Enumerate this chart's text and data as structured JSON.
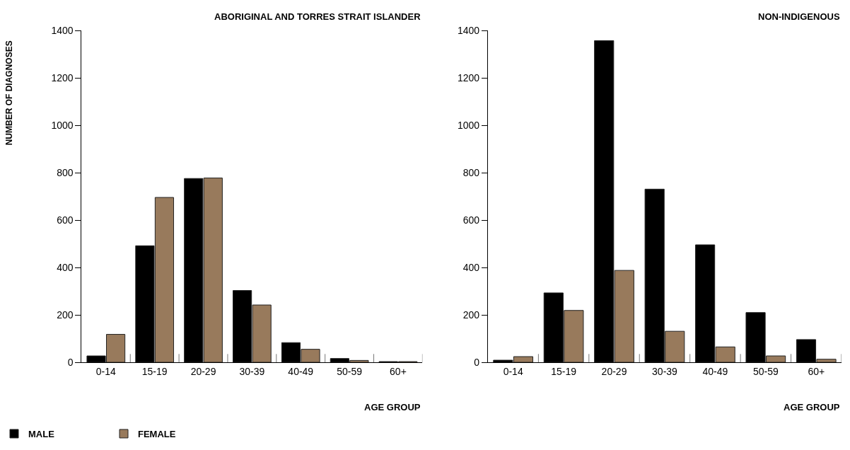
{
  "chart_data": [
    {
      "type": "bar",
      "title": "ABORIGINAL AND TORRES STRAIT ISLANDER",
      "xlabel": "AGE GROUP",
      "ylabel": "NUMBER OF DIAGNOSES",
      "categories": [
        "0-14",
        "15-19",
        "20-29",
        "30-39",
        "40-49",
        "50-59",
        "60+"
      ],
      "series": [
        {
          "name": "MALE",
          "color": "#000000",
          "values": [
            27,
            492,
            776,
            303,
            83,
            16,
            3
          ]
        },
        {
          "name": "FEMALE",
          "color": "#987a5c",
          "values": [
            118,
            696,
            778,
            242,
            55,
            8,
            3
          ]
        }
      ],
      "ylim": [
        0,
        1400
      ],
      "yticks": [
        0,
        200,
        400,
        600,
        800,
        1000,
        1200,
        1400
      ],
      "legend": "bottom left"
    },
    {
      "type": "bar",
      "title": "NON-INDIGENOUS",
      "xlabel": "AGE GROUP",
      "categories": [
        "0-14",
        "15-19",
        "20-29",
        "30-39",
        "40-49",
        "50-59",
        "60+"
      ],
      "series": [
        {
          "color": "#000000",
          "values": [
            9,
            293,
            1358,
            731,
            496,
            210,
            96
          ]
        },
        {
          "color": "#987a5c",
          "values": [
            24,
            219,
            388,
            131,
            65,
            27,
            13
          ]
        }
      ],
      "ylim": [
        0,
        1400
      ],
      "yticks": [
        0,
        200,
        400,
        600,
        800,
        1000,
        1200,
        1400
      ]
    }
  ]
}
